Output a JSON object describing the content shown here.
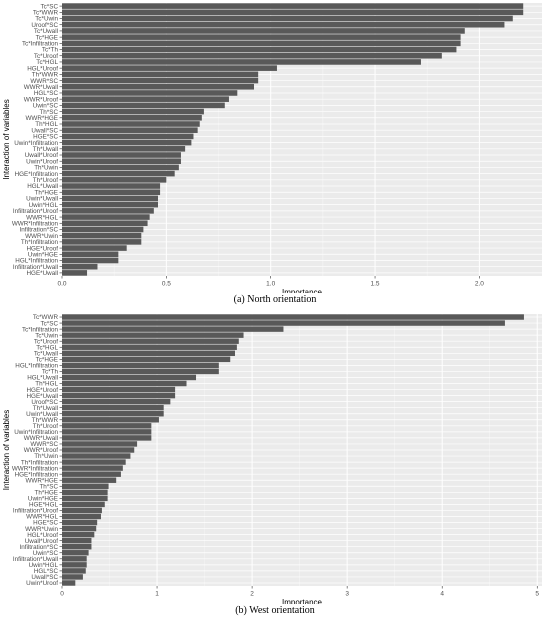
{
  "chart_data": [
    {
      "type": "bar",
      "orientation": "horizontal",
      "caption": "(a) North orientation",
      "xlabel": "Importance",
      "ylabel": "Interaction of variables",
      "xlim": [
        0,
        2.3
      ],
      "xticks": [
        0.0,
        0.5,
        1.0,
        1.5,
        2.0
      ],
      "xtick_labels": [
        "0.0",
        "0.5",
        "1.0",
        "1.5",
        "2.0"
      ],
      "grid": true,
      "bar_color": "#595959",
      "categories": [
        "Tc*SC",
        "Tc*WWR",
        "Tc*Uwin",
        "Uroof*SC",
        "Tc*Uwall",
        "Tc*HGE",
        "Tc*Infiltration",
        "Tc*Th",
        "Tc*Uroof",
        "Tc*HGL",
        "HGL*Uroof",
        "Th*WWR",
        "WWR*SC",
        "WWR*Uwall",
        "HGL*SC",
        "WWR*Uroof",
        "Uwin*SC",
        "Th*SC",
        "WWR*HGE",
        "Th*HGL",
        "Uwall*SC",
        "HGE*SC",
        "Uwin*Infiltration",
        "Th*Uwall",
        "Uwall*Uroof",
        "Uwin*Uroof",
        "Th*Uwin",
        "HGE*Infiltration",
        "Th*Uroof",
        "HGL*Uwall",
        "Th*HGE",
        "Uwin*Uwall",
        "Uwin*HGL",
        "Infiltration*Uroof",
        "WWR*HGL",
        "WWR*Infiltration",
        "Infiltration*SC",
        "WWR*Uwin",
        "Th*Infiltration",
        "HGE*Uroof",
        "Uwin*HGE",
        "HGL*Infiltration",
        "Infiltration*Uwall",
        "HGE*Uwall"
      ],
      "values": [
        2.21,
        2.21,
        2.16,
        2.12,
        1.93,
        1.91,
        1.91,
        1.89,
        1.82,
        1.72,
        1.03,
        0.94,
        0.94,
        0.92,
        0.84,
        0.8,
        0.78,
        0.68,
        0.67,
        0.66,
        0.65,
        0.63,
        0.62,
        0.59,
        0.57,
        0.57,
        0.56,
        0.54,
        0.5,
        0.47,
        0.47,
        0.46,
        0.46,
        0.44,
        0.42,
        0.41,
        0.39,
        0.38,
        0.38,
        0.31,
        0.27,
        0.27,
        0.17,
        0.12
      ]
    },
    {
      "type": "bar",
      "orientation": "horizontal",
      "caption": "(b) West orientation",
      "xlabel": "Importance",
      "ylabel": "Interaction of variables",
      "xlim": [
        0,
        5.05
      ],
      "xticks": [
        0,
        1,
        2,
        3,
        4,
        5
      ],
      "xtick_labels": [
        "0",
        "1",
        "2",
        "3",
        "4",
        "5"
      ],
      "grid": true,
      "bar_color": "#595959",
      "categories": [
        "Tc*WWR",
        "Tc*SC",
        "Tc*Infiltration",
        "Tc*Uwin",
        "Tc*Uroof",
        "Tc*HGL",
        "Tc*Uwall",
        "Tc*HGE",
        "HGL*Infiltration",
        "Tc*Th",
        "HGL*Uwall",
        "Th*HGL",
        "HGE*Uroof",
        "HGE*Uwall",
        "Uroof*SC",
        "Th*Uwall",
        "Uwin*Uwall",
        "Th*WWR",
        "Th*Uroof",
        "Uwin*Infiltration",
        "WWR*Uwall",
        "WWR*SC",
        "WWR*Uroof",
        "Th*Uwin",
        "Th*Infiltration",
        "WWR*Infiltration",
        "HGE*Infiltration",
        "WWR*HGE",
        "Th*SC",
        "Th*HGE",
        "Uwin*HGE",
        "HGE*HGL",
        "Infiltration*Uroof",
        "WWR*HGL",
        "HGE*SC",
        "WWR*Uwin",
        "HGL*Uroof",
        "Uwall*Uroof",
        "Infiltration*SC",
        "Uwin*SC",
        "Infiltration*Uwall",
        "Uwin*HGL",
        "HGL*SC",
        "Uwall*SC",
        "Uwin*Uroof"
      ],
      "values": [
        4.86,
        4.66,
        2.33,
        1.91,
        1.86,
        1.84,
        1.82,
        1.77,
        1.65,
        1.65,
        1.41,
        1.31,
        1.19,
        1.19,
        1.14,
        1.07,
        1.07,
        1.02,
        0.94,
        0.94,
        0.94,
        0.79,
        0.76,
        0.72,
        0.67,
        0.64,
        0.62,
        0.57,
        0.49,
        0.48,
        0.48,
        0.45,
        0.42,
        0.41,
        0.37,
        0.36,
        0.34,
        0.31,
        0.31,
        0.28,
        0.26,
        0.26,
        0.25,
        0.22,
        0.14
      ]
    }
  ]
}
